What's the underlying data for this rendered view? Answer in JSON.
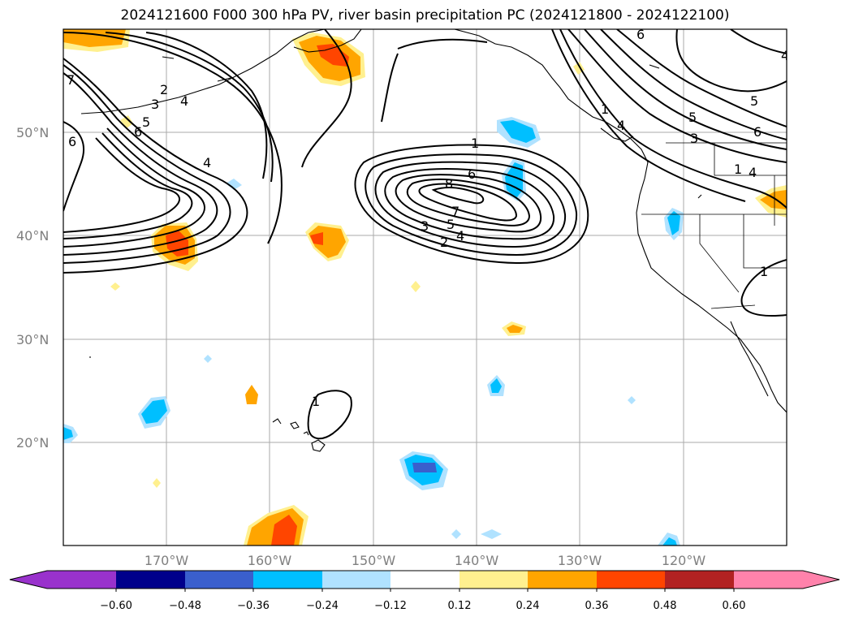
{
  "title": "2024121600 F000 300 hPa PV, river basin precipitation PC (2024121800 - 2024122100)",
  "map": {
    "projection": "plate carree",
    "lon_range": [
      -180,
      -110
    ],
    "lat_range": [
      10,
      60
    ],
    "gridlines": true,
    "lat_labels": [
      "50°N",
      "40°N",
      "30°N",
      "20°N"
    ],
    "lat_values": [
      50,
      40,
      30,
      20
    ],
    "lon_labels": [
      "170°W",
      "160°W",
      "150°W",
      "140°W",
      "130°W",
      "120°W"
    ],
    "lon_values": [
      -170,
      -160,
      -150,
      -140,
      -130,
      -120
    ]
  },
  "pv_contour_labels": [
    "1",
    "2",
    "3",
    "4",
    "5",
    "6",
    "7",
    "8",
    "1",
    "2",
    "3",
    "4",
    "5",
    "6",
    "1",
    "2",
    "3",
    "4",
    "5",
    "6"
  ],
  "colorbar": {
    "extend": "both",
    "colors": [
      "#9932cc",
      "#00008b",
      "#3a5fcd",
      "#00bfff",
      "#b0e2ff",
      "#ffffff",
      "#fff08f",
      "#ffa500",
      "#ff4500",
      "#b22222",
      "#ff82ab"
    ],
    "tick_labels": [
      "−0.60",
      "−0.48",
      "−0.36",
      "−0.24",
      "−0.12",
      "0.12",
      "0.24",
      "0.36",
      "0.48",
      "0.60"
    ],
    "tick_values": [
      -0.6,
      -0.48,
      -0.36,
      -0.24,
      -0.12,
      0.12,
      0.24,
      0.36,
      0.48,
      0.6
    ]
  }
}
